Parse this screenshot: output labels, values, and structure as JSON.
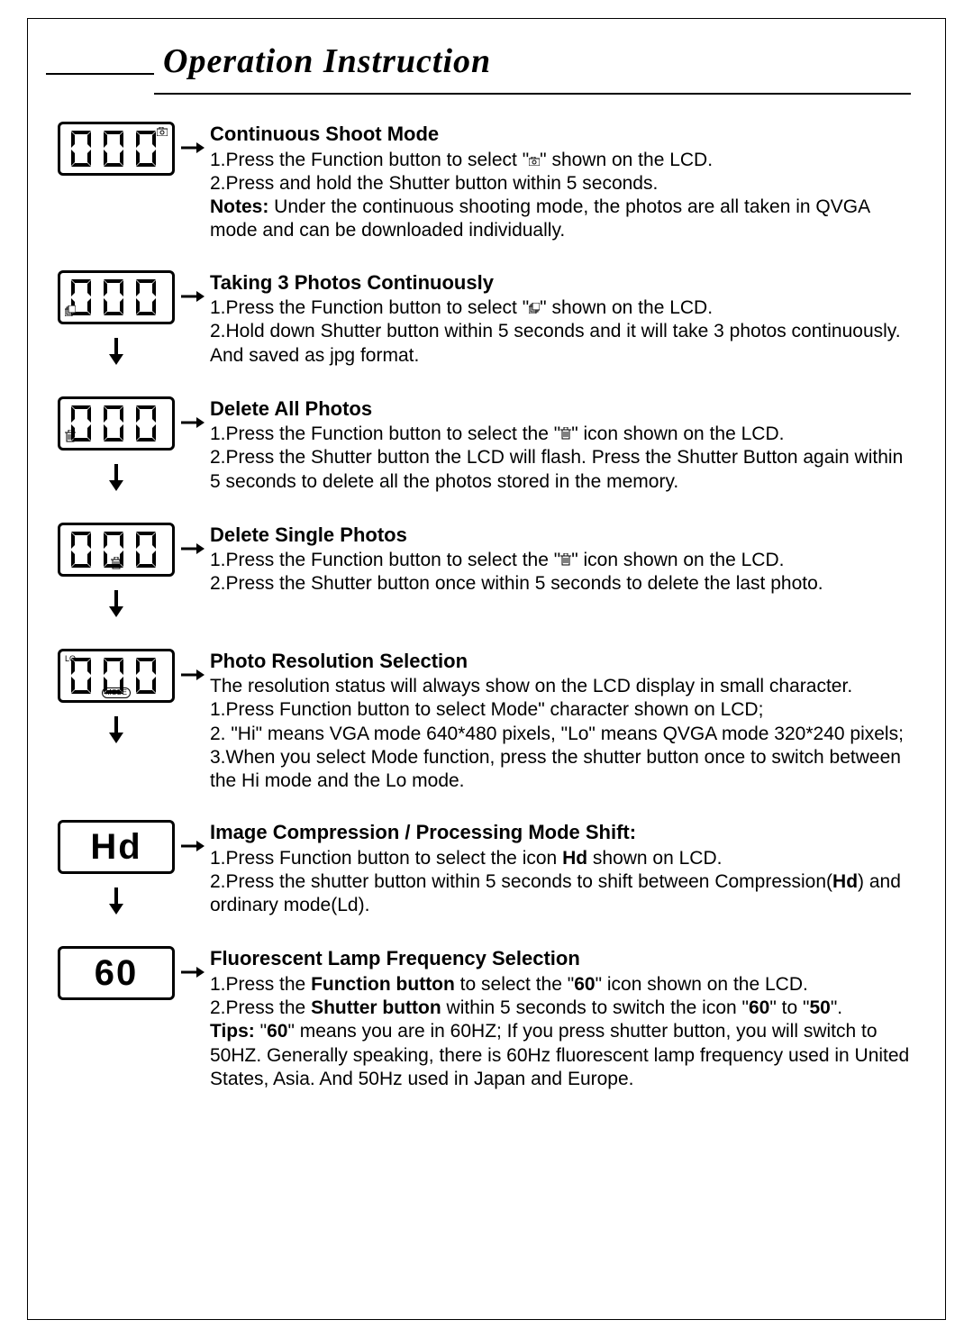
{
  "title": "Operation Instruction",
  "sections": [
    {
      "lcd": {
        "digits": "000",
        "iconPos": "tr",
        "iconSvg": "camera"
      },
      "heading": "Continuous Shoot Mode",
      "body": "1.Press the Function button to select \"⟟\" shown on the LCD.\n2.Press and hold the Shutter button within 5 seconds.",
      "notesLabel": "Notes:",
      "notes": " Under the continuous shooting mode, the photos are all taken in QVGA mode and can be downloaded individually.",
      "hasDownArrow": false
    },
    {
      "lcd": {
        "digits": "000",
        "iconPos": "bl",
        "iconSvg": "stack"
      },
      "heading": "Taking 3 Photos Continuously",
      "body": "1.Press the Function button to select \"⟟\" shown on the LCD.\n2.Hold down Shutter button within 5 seconds and it will take 3 photos continuously. And saved as jpg format.",
      "hasDownArrow": true
    },
    {
      "lcd": {
        "digits": "000",
        "iconPos": "bl",
        "iconSvg": "trash"
      },
      "heading": "Delete All Photos",
      "body": "1.Press the Function button to select the \"⟟\" icon shown on the LCD.\n2.Press the Shutter button the LCD will flash. Press the Shutter Button again within 5 seconds to delete all the photos stored in the memory.",
      "hasDownArrow": true,
      "inlineIcon": "trash"
    },
    {
      "lcd": {
        "digits": "000",
        "iconPos": "bc",
        "iconSvg": "trash"
      },
      "heading": "Delete Single Photos",
      "body": "1.Press the Function button to select the \"⟟\" icon shown on the LCD.\n2.Press the Shutter button once within 5 seconds to delete the last photo.",
      "hasDownArrow": true,
      "inlineIcon": "trash"
    },
    {
      "lcd": {
        "digits": "000",
        "iconPos": "tl",
        "iconText": "LO",
        "modeLabel": "MODE"
      },
      "heading": "Photo Resolution Selection",
      "body": "The resolution status will always show on the LCD display in small character.\n1.Press Function button to select Mode\" character shown on LCD;\n2. \"Hi\" means VGA mode 640*480 pixels, \"Lo\" means QVGA mode 320*240 pixels;\n3.When you select Mode function, press the shutter button once to switch between the Hi mode and the Lo mode.",
      "hasDownArrow": true
    },
    {
      "lcd": {
        "textAlt": "Hd"
      },
      "heading": "Image Compression / Processing Mode Shift:",
      "body": "1.Press Function button to select the icon Hd shown on LCD.\n2.Press the shutter button within 5 seconds to shift between Compression(Hd) and ordinary mode(Ld).",
      "hasDownArrow": true,
      "boldInBody": [
        "Hd"
      ]
    },
    {
      "lcd": {
        "textAlt": "60"
      },
      "heading": "Fluorescent Lamp Frequency Selection",
      "body": "1.Press the Function button to select the \"60\" icon shown on the LCD.\n2.Press the Shutter button within 5 seconds to switch the icon \"60\" to \"50\".",
      "tipsLabel": "Tips:",
      "tips": " \"60\" means you are in 60HZ; If you press shutter button, you will switch to 50HZ. Generally speaking, there is 60Hz fluorescent lamp frequency used in United States, Asia. And 50Hz used in Japan and Europe.",
      "hasDownArrow": false,
      "boldTerms": [
        "Function button",
        "Shutter button",
        "60",
        "50"
      ]
    }
  ],
  "colors": {
    "border": "#000000",
    "text": "#000000",
    "background": "#ffffff"
  }
}
